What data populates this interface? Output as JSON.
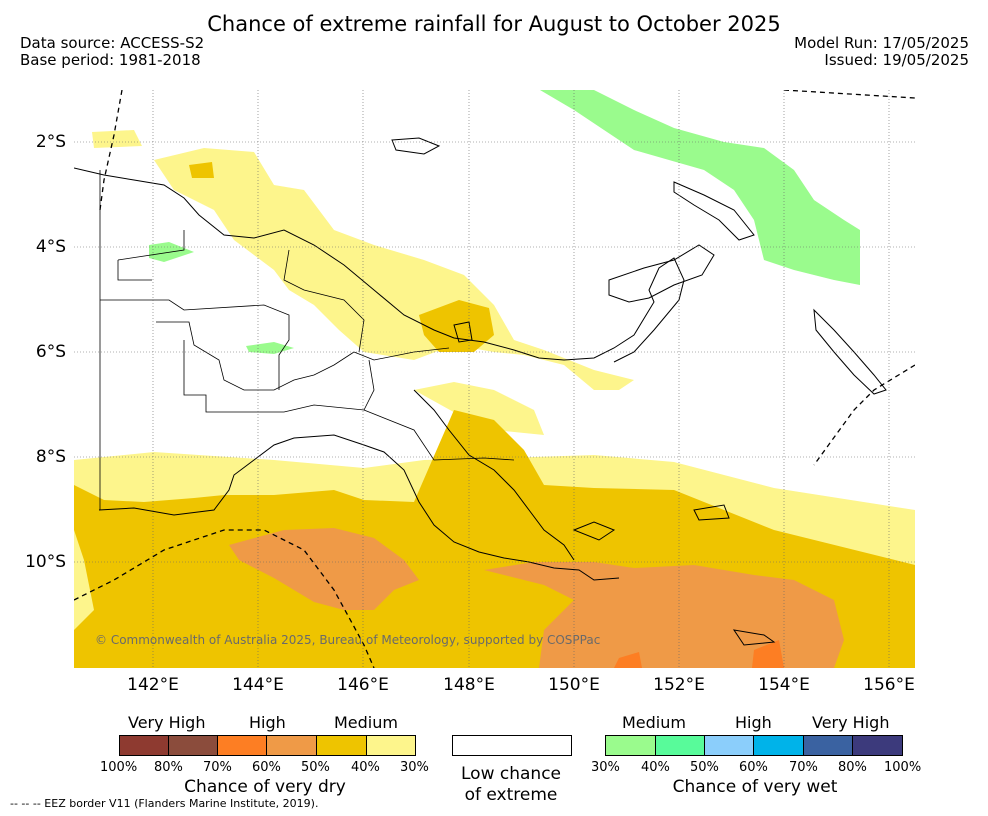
{
  "header": {
    "title": "Chance of extreme rainfall for August to October 2025",
    "data_source": "Data source: ACCESS-S2",
    "base_period": "Base period: 1981-2018",
    "model_run": "Model Run: 17/05/2025",
    "issued": "Issued: 19/05/2025"
  },
  "map": {
    "lat_labels": [
      "2°S",
      "4°S",
      "6°S",
      "8°S",
      "10°S"
    ],
    "lon_labels": [
      "142°E",
      "144°E",
      "146°E",
      "148°E",
      "150°E",
      "152°E",
      "154°E",
      "156°E"
    ],
    "copyright": "© Commonwealth of Australia 2025, Bureau of Meteorology, supported by COSPPac",
    "colors": {
      "dry_medium": "#fdf58c",
      "dry_high": "#eec400",
      "dry_very_high": "#ef9a47",
      "dry_very_high_plus": "#fd7e23",
      "wet_medium": "#9afb8d",
      "coast": "#000000"
    }
  },
  "legend": {
    "dry": {
      "heads": [
        "Very High",
        "High",
        "Medium"
      ],
      "swatch_colors": [
        "#8e3a30",
        "#8b4c3c",
        "#fd7e23",
        "#ef9a47",
        "#eec400",
        "#fdf58c"
      ],
      "ticks": [
        "100%",
        "80%",
        "70%",
        "60%",
        "50%",
        "40%",
        "30%"
      ],
      "title": "Chance of very dry"
    },
    "low": {
      "line1": "Low chance",
      "line2": "of extreme",
      "color": "#ffffff"
    },
    "wet": {
      "heads": [
        "Medium",
        "High",
        "Very High"
      ],
      "swatch_colors": [
        "#9afb8d",
        "#58fb9a",
        "#8bcefb",
        "#00b3e9",
        "#3a62a1",
        "#3c3a7c"
      ],
      "ticks": [
        "30%",
        "40%",
        "50%",
        "60%",
        "70%",
        "80%",
        "100%"
      ],
      "title": "Chance of very wet"
    },
    "eez_note": "-- -- -- EEZ border V11 (Flanders Marine Institute, 2019)."
  }
}
